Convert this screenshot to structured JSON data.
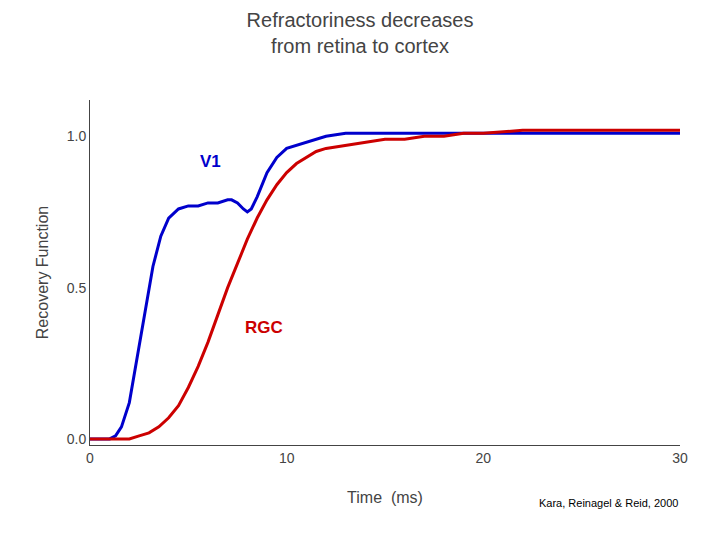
{
  "chart_data": {
    "type": "line",
    "title": "Refractoriness decreases\nfrom retina to cortex",
    "xlabel": "Time  (ms)",
    "ylabel": "Recovery Function",
    "xlim": [
      0,
      30
    ],
    "ylim": [
      -0.02,
      1.12
    ],
    "xticks": [
      0,
      10,
      20,
      30
    ],
    "yticks": [
      {
        "value": 0.0,
        "label": "0.0"
      },
      0.5,
      {
        "value": 1.0,
        "label": "1.0"
      }
    ],
    "grid": false,
    "series": [
      {
        "name": "V1",
        "color": "#0000cc",
        "x": [
          0,
          0.5,
          1.0,
          1.3,
          1.6,
          2.0,
          2.4,
          2.8,
          3.2,
          3.6,
          4.0,
          4.5,
          5.0,
          5.5,
          6.0,
          6.5,
          7.0,
          7.2,
          7.5,
          7.8,
          8.0,
          8.2,
          8.5,
          9.0,
          9.5,
          10.0,
          10.5,
          11.0,
          11.5,
          12.0,
          13.0,
          14.0,
          15.0,
          16.0,
          17.0,
          18.0,
          20.0,
          22.0,
          25.0,
          28.0,
          30.0
        ],
        "values": [
          0.0,
          0.0,
          0.0,
          0.01,
          0.04,
          0.12,
          0.27,
          0.43,
          0.57,
          0.67,
          0.73,
          0.76,
          0.77,
          0.77,
          0.78,
          0.78,
          0.79,
          0.79,
          0.78,
          0.76,
          0.75,
          0.76,
          0.8,
          0.88,
          0.93,
          0.96,
          0.97,
          0.98,
          0.99,
          1.0,
          1.01,
          1.01,
          1.01,
          1.01,
          1.01,
          1.01,
          1.01,
          1.01,
          1.01,
          1.01,
          1.01
        ]
      },
      {
        "name": "RGC",
        "color": "#cc0000",
        "x": [
          0,
          1.0,
          1.5,
          2.0,
          2.5,
          3.0,
          3.5,
          4.0,
          4.5,
          5.0,
          5.5,
          6.0,
          6.5,
          7.0,
          7.5,
          8.0,
          8.5,
          9.0,
          9.5,
          10.0,
          10.5,
          11.0,
          11.5,
          12.0,
          13.0,
          14.0,
          15.0,
          16.0,
          17.0,
          18.0,
          19.0,
          20.0,
          22.0,
          24.0,
          26.0,
          28.0,
          30.0
        ],
        "values": [
          0.0,
          0.0,
          0.0,
          0.0,
          0.01,
          0.02,
          0.04,
          0.07,
          0.11,
          0.17,
          0.24,
          0.32,
          0.41,
          0.5,
          0.58,
          0.66,
          0.73,
          0.79,
          0.84,
          0.88,
          0.91,
          0.93,
          0.95,
          0.96,
          0.97,
          0.98,
          0.99,
          0.99,
          1.0,
          1.0,
          1.01,
          1.01,
          1.02,
          1.02,
          1.02,
          1.02,
          1.02
        ]
      }
    ],
    "annotations": [
      {
        "text": "V1",
        "x": 5.5,
        "y": 0.88,
        "color": "#0000cc"
      },
      {
        "text": "RGC",
        "x": 7.8,
        "y": 0.33,
        "color": "#cc0000"
      },
      {
        "text": "Kara, Reinagel & Reid, 2000"
      }
    ]
  }
}
